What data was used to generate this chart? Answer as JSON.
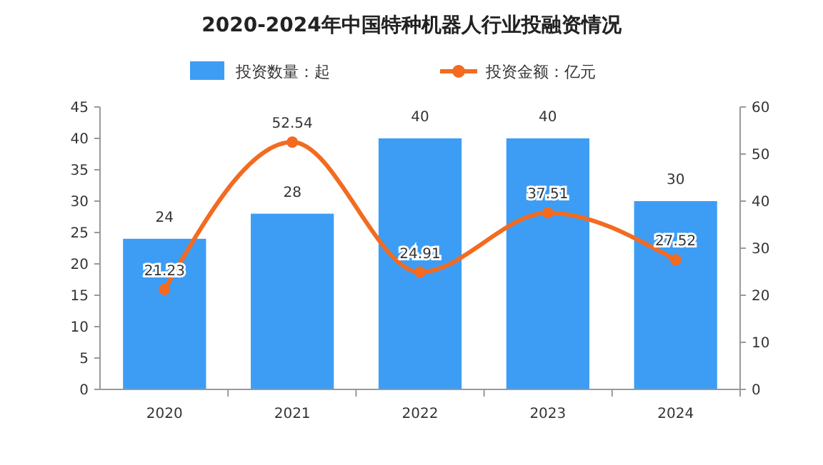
{
  "chart_data": {
    "type": "bar",
    "title": "2020-2024年中国特种机器人行业投融资情况",
    "categories": [
      "2020",
      "2021",
      "2022",
      "2023",
      "2024"
    ],
    "series": [
      {
        "name": "投资数量：起",
        "color": "#3d9df5",
        "values": [
          24,
          28,
          40,
          40,
          30
        ]
      },
      {
        "name": "投资金额：亿元",
        "type": "line",
        "axis": "y2",
        "color": "#f26b21",
        "values": [
          21.23,
          52.54,
          24.91,
          37.51,
          27.52
        ]
      }
    ],
    "ylim": [
      0,
      45
    ],
    "yticks": [
      0,
      5,
      10,
      15,
      20,
      25,
      30,
      35,
      40,
      45
    ],
    "y2lim": [
      0,
      60
    ],
    "y2ticks": [
      0,
      10,
      20,
      30,
      40,
      50,
      60
    ],
    "data_labels": true,
    "legend": "top",
    "marker": "circle",
    "line_style": "solid",
    "grid": false
  }
}
